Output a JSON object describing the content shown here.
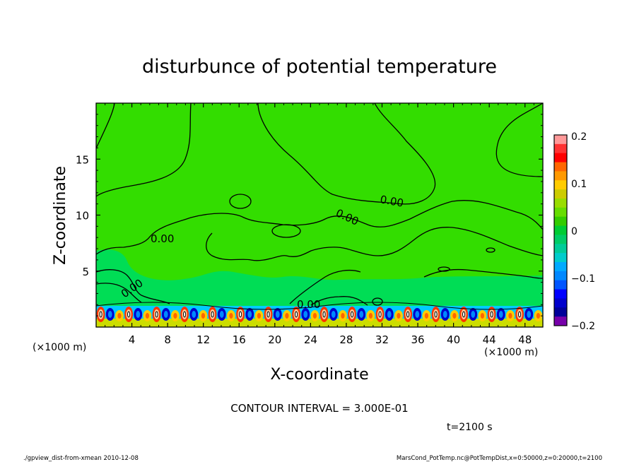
{
  "chart_data": {
    "type": "heatmap",
    "title": "disturbunce of potential temperature",
    "xlabel": "X-coordinate",
    "ylabel": "Z-coordinate",
    "x_unit": "(×1000 m)",
    "z_unit": "(×1000 m)",
    "xlim": [
      0,
      50
    ],
    "ylim": [
      0,
      20
    ],
    "x_ticks": [
      "4",
      "8",
      "12",
      "16",
      "20",
      "24",
      "28",
      "32",
      "36",
      "40",
      "44",
      "48"
    ],
    "y_ticks": [
      "5",
      "10",
      "15"
    ],
    "contour_labels": [
      "0.00",
      "0.00",
      "0.00",
      "0.00",
      "0.00"
    ],
    "colorbar": {
      "range": [
        -0.2,
        0.2
      ],
      "tick_labels": [
        "0.2",
        "0.1",
        "0",
        "−0.1",
        "−0.2"
      ],
      "colors": [
        "#ff9999",
        "#ff3333",
        "#ff0000",
        "#ff6600",
        "#ff9900",
        "#ffcc00",
        "#cccc00",
        "#99dd00",
        "#66dd00",
        "#33cc00",
        "#00cc33",
        "#00cc66",
        "#00cc99",
        "#00cccc",
        "#00aaff",
        "#0088ff",
        "#0055ff",
        "#0000ff",
        "#0000cc",
        "#000099",
        "#7700aa"
      ]
    },
    "contour_interval_text": "CONTOUR INTERVAL = 3.000E-01",
    "time_text": "t=2100 s"
  },
  "footer": {
    "left": "./gpview_dist-from-xmean  2010-12-08",
    "right": "MarsCond_PotTemp.nc@PotTempDist,x=0:50000,z=0:20000,t=2100"
  },
  "colors": {
    "field_green": "#33dd00",
    "field_cyan_green": "#00dd55",
    "line": "#000000"
  }
}
